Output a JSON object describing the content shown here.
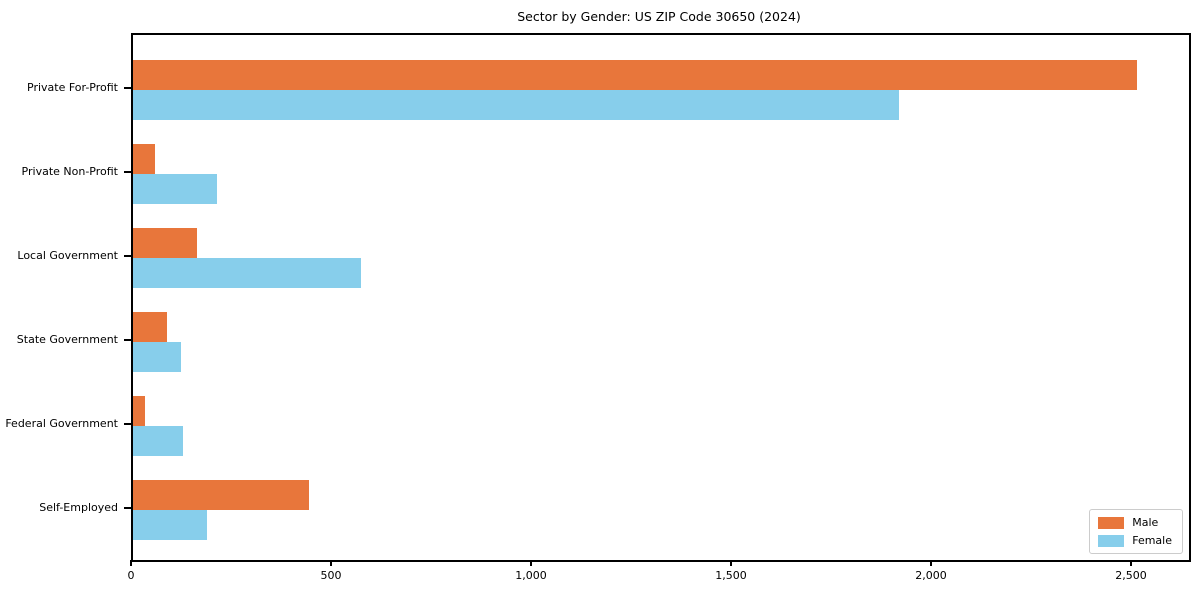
{
  "title": "Sector by Gender: US ZIP Code 30650 (2024)",
  "chart_data": {
    "type": "bar",
    "orientation": "horizontal",
    "title": "Sector by Gender: US ZIP Code 30650 (2024)",
    "categories": [
      "Private For-Profit",
      "Private Non-Profit",
      "Local Government",
      "State Government",
      "Federal Government",
      "Self-Employed"
    ],
    "series": [
      {
        "name": "Male",
        "color": "#e8763b",
        "values": [
          2510,
          55,
          160,
          85,
          30,
          440
        ]
      },
      {
        "name": "Female",
        "color": "#87ceeb",
        "values": [
          1915,
          210,
          570,
          120,
          125,
          185
        ]
      }
    ],
    "xlabel": "",
    "ylabel": "",
    "xlim": [
      0,
      2640
    ],
    "x_ticks": [
      0,
      500,
      1000,
      1500,
      2000,
      2500
    ],
    "x_tick_labels": [
      "0",
      "500",
      "1,000",
      "1,500",
      "2,000",
      "2,500"
    ],
    "legend_position": "lower right",
    "grid": false,
    "background_color": "#ffffff",
    "spine_color": "#000000"
  }
}
